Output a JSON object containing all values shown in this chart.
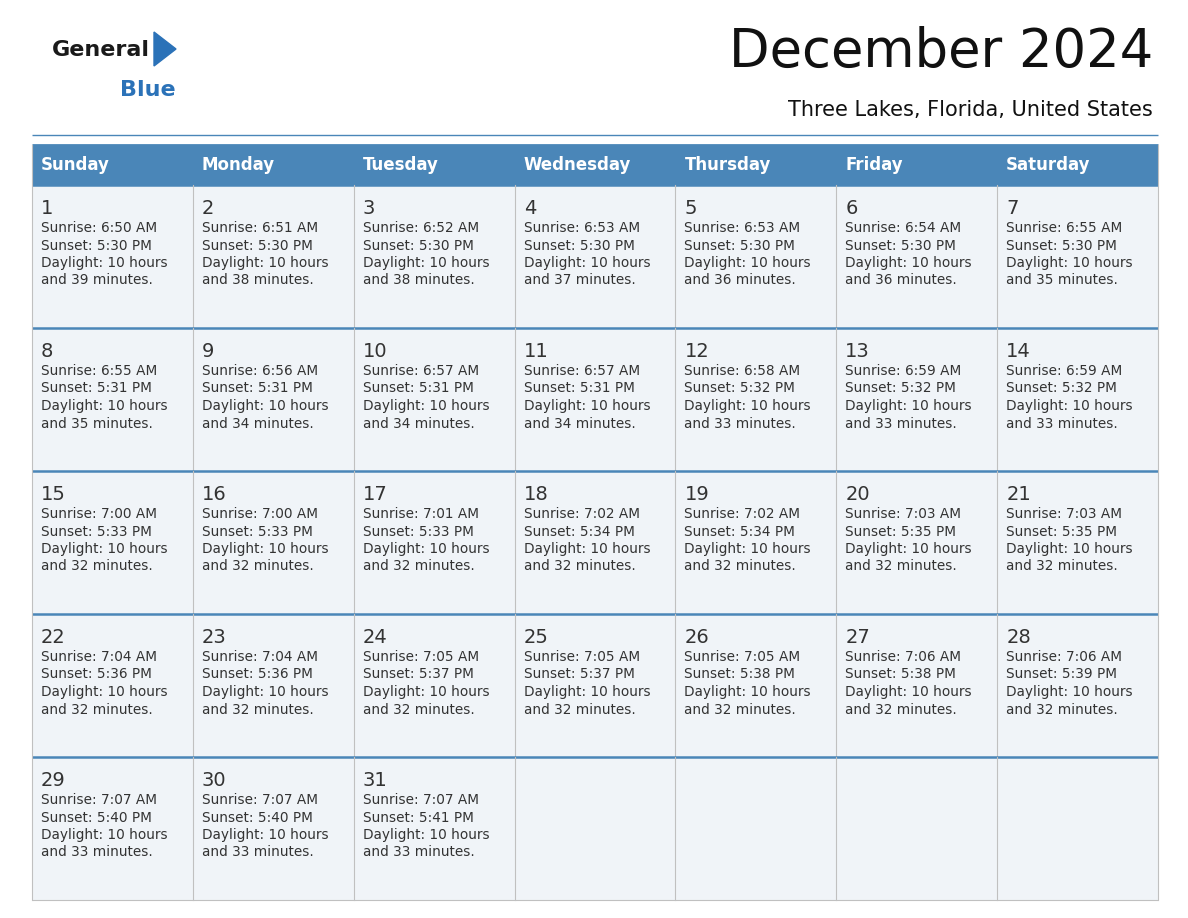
{
  "title": "December 2024",
  "subtitle": "Three Lakes, Florida, United States",
  "days_of_week": [
    "Sunday",
    "Monday",
    "Tuesday",
    "Wednesday",
    "Thursday",
    "Friday",
    "Saturday"
  ],
  "header_bg": "#4a86b8",
  "header_text": "#ffffff",
  "cell_bg_odd": "#f0f4f8",
  "cell_bg_even": "#ffffff",
  "row_border_color": "#4a86b8",
  "col_border_color": "#c0c0c0",
  "text_color": "#333333",
  "day_num_color": "#333333",
  "calendar": [
    [
      {
        "day": 1,
        "sunrise": "6:50 AM",
        "sunset": "5:30 PM",
        "daylight_suffix": "39 minutes."
      },
      {
        "day": 2,
        "sunrise": "6:51 AM",
        "sunset": "5:30 PM",
        "daylight_suffix": "38 minutes."
      },
      {
        "day": 3,
        "sunrise": "6:52 AM",
        "sunset": "5:30 PM",
        "daylight_suffix": "38 minutes."
      },
      {
        "day": 4,
        "sunrise": "6:53 AM",
        "sunset": "5:30 PM",
        "daylight_suffix": "37 minutes."
      },
      {
        "day": 5,
        "sunrise": "6:53 AM",
        "sunset": "5:30 PM",
        "daylight_suffix": "36 minutes."
      },
      {
        "day": 6,
        "sunrise": "6:54 AM",
        "sunset": "5:30 PM",
        "daylight_suffix": "36 minutes."
      },
      {
        "day": 7,
        "sunrise": "6:55 AM",
        "sunset": "5:30 PM",
        "daylight_suffix": "35 minutes."
      }
    ],
    [
      {
        "day": 8,
        "sunrise": "6:55 AM",
        "sunset": "5:31 PM",
        "daylight_suffix": "35 minutes."
      },
      {
        "day": 9,
        "sunrise": "6:56 AM",
        "sunset": "5:31 PM",
        "daylight_suffix": "34 minutes."
      },
      {
        "day": 10,
        "sunrise": "6:57 AM",
        "sunset": "5:31 PM",
        "daylight_suffix": "34 minutes."
      },
      {
        "day": 11,
        "sunrise": "6:57 AM",
        "sunset": "5:31 PM",
        "daylight_suffix": "34 minutes."
      },
      {
        "day": 12,
        "sunrise": "6:58 AM",
        "sunset": "5:32 PM",
        "daylight_suffix": "33 minutes."
      },
      {
        "day": 13,
        "sunrise": "6:59 AM",
        "sunset": "5:32 PM",
        "daylight_suffix": "33 minutes."
      },
      {
        "day": 14,
        "sunrise": "6:59 AM",
        "sunset": "5:32 PM",
        "daylight_suffix": "33 minutes."
      }
    ],
    [
      {
        "day": 15,
        "sunrise": "7:00 AM",
        "sunset": "5:33 PM",
        "daylight_suffix": "32 minutes."
      },
      {
        "day": 16,
        "sunrise": "7:00 AM",
        "sunset": "5:33 PM",
        "daylight_suffix": "32 minutes."
      },
      {
        "day": 17,
        "sunrise": "7:01 AM",
        "sunset": "5:33 PM",
        "daylight_suffix": "32 minutes."
      },
      {
        "day": 18,
        "sunrise": "7:02 AM",
        "sunset": "5:34 PM",
        "daylight_suffix": "32 minutes."
      },
      {
        "day": 19,
        "sunrise": "7:02 AM",
        "sunset": "5:34 PM",
        "daylight_suffix": "32 minutes."
      },
      {
        "day": 20,
        "sunrise": "7:03 AM",
        "sunset": "5:35 PM",
        "daylight_suffix": "32 minutes."
      },
      {
        "day": 21,
        "sunrise": "7:03 AM",
        "sunset": "5:35 PM",
        "daylight_suffix": "32 minutes."
      }
    ],
    [
      {
        "day": 22,
        "sunrise": "7:04 AM",
        "sunset": "5:36 PM",
        "daylight_suffix": "32 minutes."
      },
      {
        "day": 23,
        "sunrise": "7:04 AM",
        "sunset": "5:36 PM",
        "daylight_suffix": "32 minutes."
      },
      {
        "day": 24,
        "sunrise": "7:05 AM",
        "sunset": "5:37 PM",
        "daylight_suffix": "32 minutes."
      },
      {
        "day": 25,
        "sunrise": "7:05 AM",
        "sunset": "5:37 PM",
        "daylight_suffix": "32 minutes."
      },
      {
        "day": 26,
        "sunrise": "7:05 AM",
        "sunset": "5:38 PM",
        "daylight_suffix": "32 minutes."
      },
      {
        "day": 27,
        "sunrise": "7:06 AM",
        "sunset": "5:38 PM",
        "daylight_suffix": "32 minutes."
      },
      {
        "day": 28,
        "sunrise": "7:06 AM",
        "sunset": "5:39 PM",
        "daylight_suffix": "32 minutes."
      }
    ],
    [
      {
        "day": 29,
        "sunrise": "7:07 AM",
        "sunset": "5:40 PM",
        "daylight_suffix": "33 minutes."
      },
      {
        "day": 30,
        "sunrise": "7:07 AM",
        "sunset": "5:40 PM",
        "daylight_suffix": "33 minutes."
      },
      {
        "day": 31,
        "sunrise": "7:07 AM",
        "sunset": "5:41 PM",
        "daylight_suffix": "33 minutes."
      },
      null,
      null,
      null,
      null
    ]
  ],
  "logo_general_color": "#1a1a1a",
  "logo_blue_color": "#2b72b8",
  "fig_width": 11.88,
  "fig_height": 9.18,
  "dpi": 100
}
